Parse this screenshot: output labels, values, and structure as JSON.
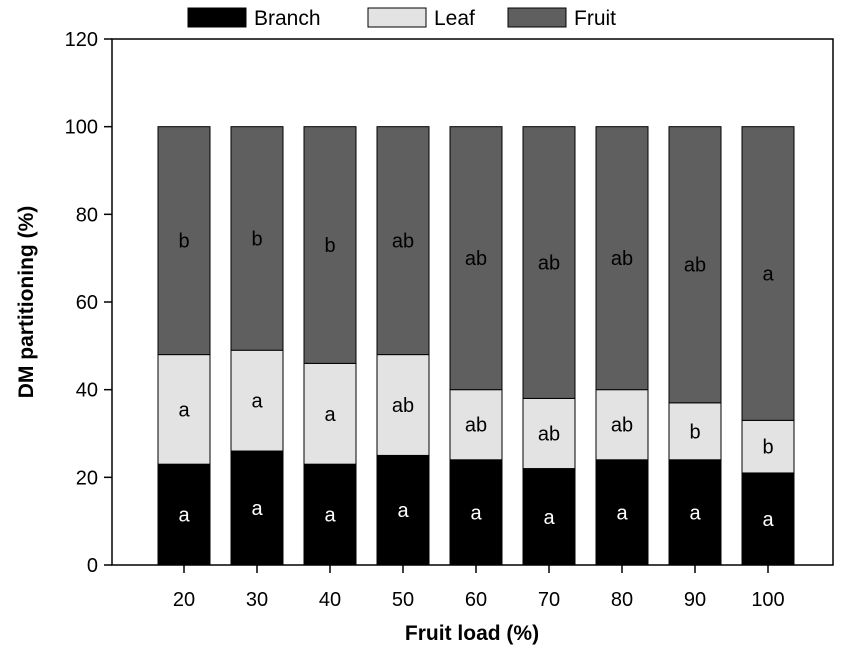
{
  "chart_data": {
    "type": "bar",
    "stacked": true,
    "categories": [
      "20",
      "30",
      "40",
      "50",
      "60",
      "70",
      "80",
      "90",
      "100"
    ],
    "xlabel": "Fruit load (%)",
    "ylabel": "DM partitioning (%)",
    "ylim": [
      0,
      120
    ],
    "yticks": [
      0,
      20,
      40,
      60,
      80,
      100,
      120
    ],
    "legend_position": "top",
    "grid": false,
    "series": [
      {
        "name": "Branch",
        "color": "#000000",
        "label_color": "#ffffff",
        "values": [
          23,
          26,
          23,
          25,
          24,
          22,
          24,
          24,
          21
        ],
        "labels": [
          "a",
          "a",
          "a",
          "a",
          "a",
          "a",
          "a",
          "a",
          "a"
        ]
      },
      {
        "name": "Leaf",
        "color": "#e3e3e3",
        "label_color": "#000000",
        "values": [
          25,
          23,
          23,
          23,
          16,
          16,
          16,
          13,
          12
        ],
        "labels": [
          "a",
          "a",
          "a",
          "ab",
          "ab",
          "ab",
          "ab",
          "b",
          "b"
        ]
      },
      {
        "name": "Fruit",
        "color": "#5f5f5f",
        "label_color": "#000000",
        "values": [
          52,
          51,
          54,
          52,
          60,
          62,
          60,
          63,
          67
        ],
        "labels": [
          "b",
          "b",
          "b",
          "ab",
          "ab",
          "ab",
          "ab",
          "ab",
          "a"
        ]
      }
    ]
  }
}
